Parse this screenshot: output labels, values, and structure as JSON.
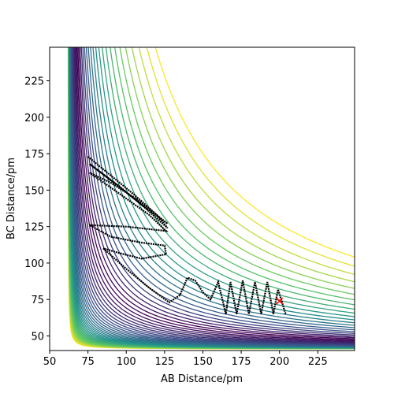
{
  "chart_data": {
    "type": "contour-trajectory",
    "x_label": "AB Distance/pm",
    "y_label": "BC Distance/pm",
    "xlim": [
      50,
      249
    ],
    "ylim": [
      40,
      248
    ],
    "xticks": [
      50,
      75,
      100,
      125,
      150,
      175,
      200,
      225
    ],
    "yticks": [
      50,
      75,
      100,
      125,
      150,
      175,
      200,
      225
    ],
    "series": [
      {
        "color": "#000000",
        "x": [
          75,
          90,
          105,
          120,
          127,
          110,
          95,
          76,
          92,
          110,
          127,
          108,
          90,
          76,
          95,
          115,
          126,
          100,
          76,
          90,
          110,
          125,
          126,
          110,
          95,
          85,
          100,
          115,
          128,
          135,
          140,
          145,
          150,
          155,
          160,
          165,
          168,
          172,
          176,
          180,
          184,
          188,
          192,
          196,
          199,
          204
        ],
        "y": [
          173,
          160,
          147,
          133,
          124,
          140,
          153,
          168,
          155,
          140,
          127,
          143,
          155,
          162,
          148,
          133,
          122,
          125,
          126,
          118,
          114,
          112,
          106,
          103,
          107,
          110,
          96,
          83,
          73,
          78,
          90,
          88,
          80,
          75,
          87,
          65,
          87,
          65,
          88,
          65,
          87,
          65,
          87,
          65,
          82,
          65
        ]
      },
      {
        "color": "#ff0000",
        "x": [
          200
        ],
        "y": [
          74
        ]
      }
    ]
  }
}
